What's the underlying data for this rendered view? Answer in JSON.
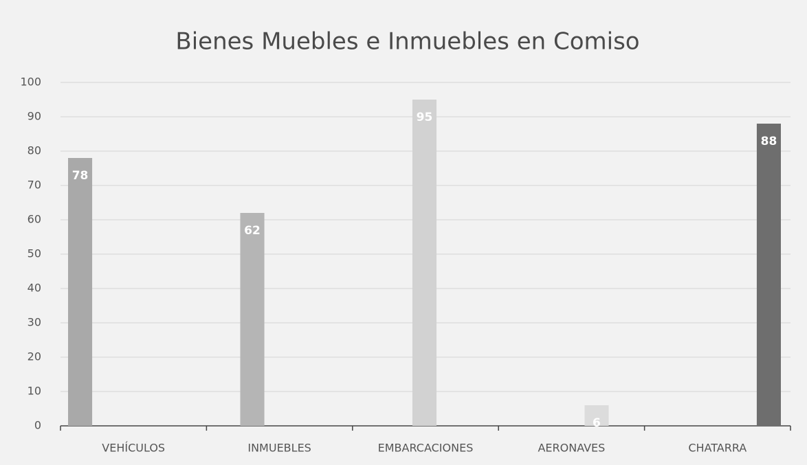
{
  "chart_data": {
    "type": "bar",
    "title": "Bienes Muebles e Inmuebles en Comiso",
    "categories": [
      "VEHÍCULOS",
      "INMUEBLES",
      "EMBARCACIONES",
      "AERONAVES",
      "CHATARRA"
    ],
    "series": [
      {
        "color": "#a9a9a9",
        "values": [
          78,
          null,
          null,
          null,
          null
        ]
      },
      {
        "color": "#b5b5b5",
        "values": [
          null,
          62,
          null,
          null,
          null
        ]
      },
      {
        "color": "#d2d2d2",
        "values": [
          null,
          null,
          95,
          null,
          null
        ]
      },
      {
        "color": "#dcdcdc",
        "values": [
          null,
          null,
          null,
          6,
          null
        ]
      },
      {
        "color": "#6e6e6e",
        "values": [
          null,
          null,
          null,
          null,
          88
        ]
      }
    ],
    "ylim": [
      0,
      100
    ],
    "yticks": [
      0,
      10,
      20,
      30,
      40,
      50,
      60,
      70,
      80,
      90,
      100
    ],
    "grid": true
  }
}
